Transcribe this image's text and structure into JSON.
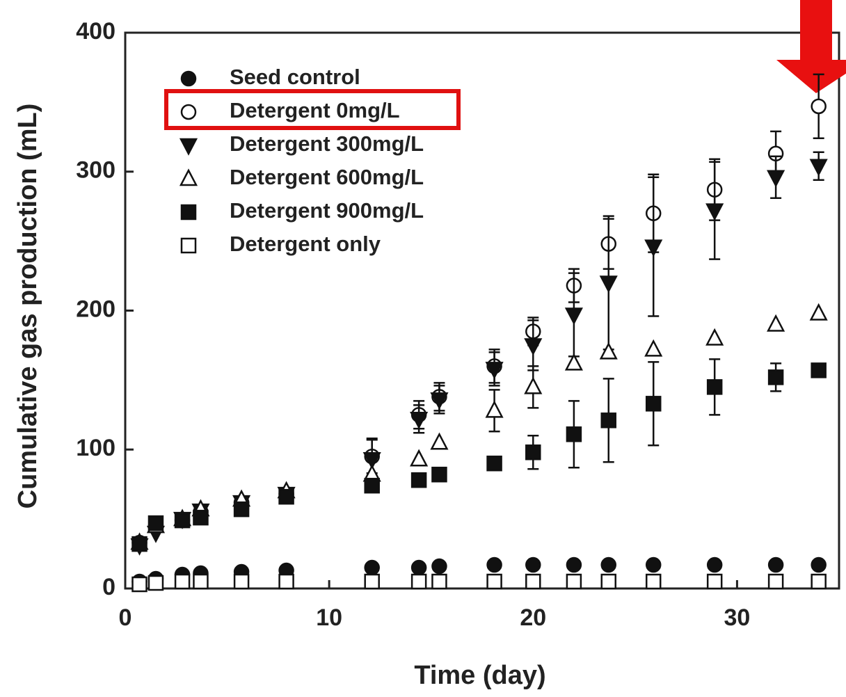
{
  "chart_data": {
    "type": "scatter",
    "xlabel": "Time (day)",
    "ylabel": "Cumulative gas production (mL)",
    "xlim": [
      0,
      35
    ],
    "ylim": [
      0,
      400
    ],
    "xticks": [
      0,
      10,
      20,
      30
    ],
    "yticks": [
      0,
      100,
      200,
      300,
      400
    ],
    "legend": "upper left",
    "x": [
      0.7,
      1.5,
      2.8,
      3.7,
      5.7,
      7.9,
      12.1,
      14.4,
      15.4,
      18.1,
      20,
      22,
      23.7,
      25.9,
      28.9,
      31.9,
      34
    ],
    "series": [
      {
        "name": "Seed control",
        "marker": "circle",
        "filled": true,
        "color": "#111",
        "values": [
          5,
          7,
          10,
          11,
          12,
          13,
          15,
          15,
          16,
          17,
          17,
          17,
          17,
          17,
          17,
          17,
          17
        ]
      },
      {
        "name": "Detergent 0mg/L",
        "marker": "circle",
        "filled": false,
        "color": "#111",
        "values": [
          33,
          45,
          49,
          55,
          62,
          68,
          95,
          125,
          138,
          160,
          185,
          218,
          248,
          270,
          287,
          313,
          347
        ],
        "errors": [
          null,
          null,
          null,
          null,
          null,
          null,
          12,
          10,
          10,
          12,
          10,
          12,
          18,
          28,
          22,
          16,
          23
        ]
      },
      {
        "name": "Detergent 300mg/L",
        "marker": "triangle-down",
        "filled": true,
        "color": "#111",
        "values": [
          31,
          40,
          50,
          56,
          62,
          68,
          93,
          122,
          136,
          158,
          175,
          197,
          220,
          246,
          272,
          296,
          304
        ],
        "errors": [
          null,
          null,
          null,
          null,
          null,
          null,
          15,
          10,
          10,
          12,
          18,
          30,
          48,
          50,
          35,
          15,
          10
        ]
      },
      {
        "name": "Detergent 600mg/L",
        "marker": "triangle-up",
        "filled": false,
        "color": "#111",
        "values": [
          33,
          45,
          50,
          57,
          64,
          70,
          82,
          93,
          105,
          128,
          145,
          162,
          170,
          172,
          180,
          190,
          198
        ],
        "errors": [
          null,
          null,
          null,
          null,
          null,
          null,
          null,
          null,
          null,
          15,
          15,
          null,
          null,
          null,
          null,
          null,
          null
        ]
      },
      {
        "name": "Detergent 900mg/L",
        "marker": "square",
        "filled": true,
        "color": "#111",
        "values": [
          32,
          47,
          49,
          51,
          57,
          66,
          74,
          78,
          82,
          90,
          98,
          111,
          121,
          133,
          145,
          152,
          157
        ],
        "errors": [
          null,
          null,
          null,
          null,
          null,
          null,
          null,
          null,
          null,
          null,
          12,
          24,
          30,
          30,
          20,
          10,
          null
        ]
      },
      {
        "name": "Detergent only",
        "marker": "square",
        "filled": false,
        "color": "#111",
        "values": [
          3,
          4,
          5,
          5,
          5,
          5,
          5,
          5,
          5,
          5,
          5,
          5,
          5,
          5,
          5,
          5,
          5
        ]
      }
    ]
  }
}
